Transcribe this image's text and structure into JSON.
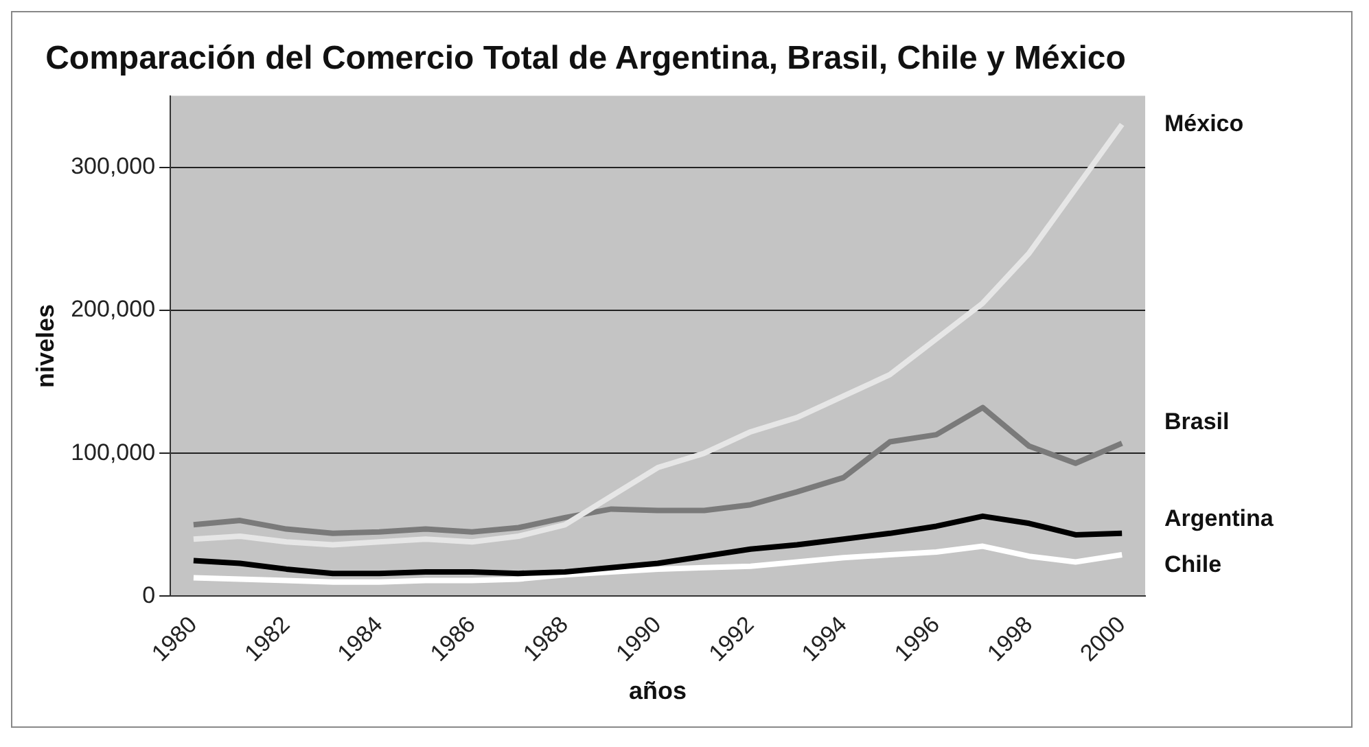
{
  "chart_data": {
    "type": "line",
    "title": "Comparación del Comercio Total de Argentina, Brasil, Chile y México",
    "xlabel": "años",
    "ylabel": "niveles",
    "categories": [
      "1980",
      null,
      "1982",
      null,
      "1984",
      null,
      "1986",
      null,
      "1988",
      null,
      "1990",
      null,
      "1992",
      null,
      "1994",
      null,
      "1996",
      null,
      "1998",
      null,
      "2000"
    ],
    "ylim": [
      0,
      350000
    ],
    "yticks": [
      0,
      {
        "value": 100000,
        "label": "100,000"
      },
      {
        "value": 200000,
        "label": "200,000"
      },
      {
        "value": 300000,
        "label": "300,000"
      }
    ],
    "grid": "y",
    "legend": false,
    "marker": "none",
    "series": [
      {
        "name": "México",
        "color": "#e6e6e6",
        "values": [
          40000,
          42000,
          38000,
          36000,
          38000,
          40000,
          38000,
          42000,
          50000,
          70000,
          90000,
          100000,
          115000,
          125000,
          140000,
          155000,
          180000,
          205000,
          240000,
          285000,
          330000
        ]
      },
      {
        "name": "Brasil",
        "color": "#7a7a7a",
        "values": [
          50000,
          53000,
          47000,
          44000,
          45000,
          47000,
          45000,
          48000,
          55000,
          61000,
          60000,
          60000,
          64000,
          73000,
          83000,
          108000,
          113000,
          132000,
          105000,
          93000,
          107000
        ]
      },
      {
        "name": "Argentina",
        "color": "#000000",
        "values": [
          25000,
          23000,
          19000,
          16000,
          16000,
          17000,
          17000,
          16000,
          17000,
          20000,
          23000,
          28000,
          33000,
          36000,
          40000,
          44000,
          49000,
          56000,
          51000,
          43000,
          44000
        ]
      },
      {
        "name": "Chile",
        "color": "#ffffff",
        "values": [
          13000,
          12000,
          11000,
          10000,
          10000,
          11000,
          11000,
          12000,
          15000,
          17000,
          19000,
          20000,
          21000,
          24000,
          27000,
          29000,
          31000,
          35000,
          28000,
          24000,
          29000
        ]
      }
    ]
  }
}
